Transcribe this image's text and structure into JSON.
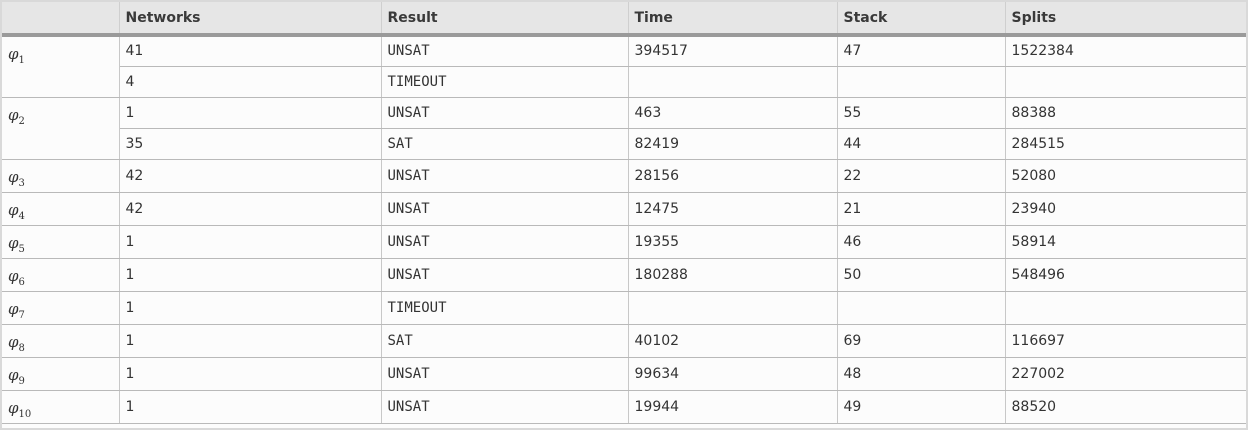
{
  "headers": [
    "",
    "Networks",
    "Result",
    "Time",
    "Stack",
    "Splits"
  ],
  "groups": [
    {
      "phi": "φ",
      "sub": "1",
      "rows": [
        {
          "networks": "41",
          "result": "UNSAT",
          "time": "394517",
          "stack": "47",
          "splits": "1522384"
        },
        {
          "networks": "4",
          "result": "TIMEOUT",
          "time": "",
          "stack": "",
          "splits": ""
        }
      ]
    },
    {
      "phi": "φ",
      "sub": "2",
      "rows": [
        {
          "networks": "1",
          "result": "UNSAT",
          "time": "463",
          "stack": "55",
          "splits": "88388"
        },
        {
          "networks": "35",
          "result": "SAT",
          "time": "82419",
          "stack": "44",
          "splits": "284515"
        }
      ]
    },
    {
      "phi": "φ",
      "sub": "3",
      "rows": [
        {
          "networks": "42",
          "result": "UNSAT",
          "time": "28156",
          "stack": "22",
          "splits": "52080"
        }
      ]
    },
    {
      "phi": "φ",
      "sub": "4",
      "rows": [
        {
          "networks": "42",
          "result": "UNSAT",
          "time": "12475",
          "stack": "21",
          "splits": "23940"
        }
      ]
    },
    {
      "phi": "φ",
      "sub": "5",
      "rows": [
        {
          "networks": "1",
          "result": "UNSAT",
          "time": "19355",
          "stack": "46",
          "splits": "58914"
        }
      ]
    },
    {
      "phi": "φ",
      "sub": "6",
      "rows": [
        {
          "networks": "1",
          "result": "UNSAT",
          "time": "180288",
          "stack": "50",
          "splits": "548496"
        }
      ]
    },
    {
      "phi": "φ",
      "sub": "7",
      "rows": [
        {
          "networks": "1",
          "result": "TIMEOUT",
          "time": "",
          "stack": "",
          "splits": ""
        }
      ]
    },
    {
      "phi": "φ",
      "sub": "8",
      "rows": [
        {
          "networks": "1",
          "result": "SAT",
          "time": "40102",
          "stack": "69",
          "splits": "116697"
        }
      ]
    },
    {
      "phi": "φ",
      "sub": "9",
      "rows": [
        {
          "networks": "1",
          "result": "UNSAT",
          "time": "99634",
          "stack": "48",
          "splits": "227002"
        }
      ]
    },
    {
      "phi": "φ",
      "sub": "10",
      "rows": [
        {
          "networks": "1",
          "result": "UNSAT",
          "time": "19944",
          "stack": "49",
          "splits": "88520"
        }
      ]
    }
  ]
}
